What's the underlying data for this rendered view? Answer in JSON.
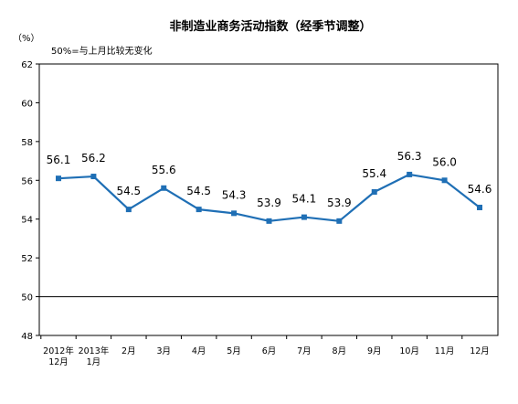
{
  "chart_data": {
    "type": "line",
    "title": "非制造业商务活动指数（经季节调整）",
    "unit_label": "（%）",
    "note": "50%=与上月比较无变化",
    "ylim": [
      48,
      62
    ],
    "yticks": [
      48,
      50,
      52,
      54,
      56,
      58,
      60,
      62
    ],
    "reference_line": 50,
    "grid": false,
    "categories": [
      [
        "2012年",
        "12月"
      ],
      [
        "2013年",
        "1月"
      ],
      [
        "2月"
      ],
      [
        "3月"
      ],
      [
        "4月"
      ],
      [
        "5月"
      ],
      [
        "6月"
      ],
      [
        "7月"
      ],
      [
        "8月"
      ],
      [
        "9月"
      ],
      [
        "10月"
      ],
      [
        "11月"
      ],
      [
        "12月"
      ]
    ],
    "series": [
      {
        "values": [
          56.1,
          56.2,
          54.5,
          55.6,
          54.5,
          54.3,
          53.9,
          54.1,
          53.9,
          55.4,
          56.3,
          56.0,
          54.6
        ],
        "labels": [
          "56.1",
          "56.2",
          "54.5",
          "55.6",
          "54.5",
          "54.3",
          "53.9",
          "54.1",
          "53.9",
          "55.4",
          "56.3",
          "56.0",
          "54.6"
        ],
        "color": "#1f6fb5"
      }
    ]
  }
}
